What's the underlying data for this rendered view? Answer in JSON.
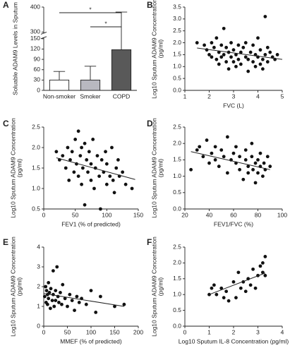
{
  "chart_data": [
    {
      "type": "bar",
      "panel": "A",
      "ylabel": [
        "Soluable ADAM9 Levels in Sputum"
      ],
      "categories": [
        "Non-smoker",
        "Smoker",
        "COPD"
      ],
      "values": [
        30,
        30,
        118
      ],
      "errors": [
        25,
        40,
        262
      ],
      "colors": [
        "#ffffff",
        "#b8b8c0",
        "#595959"
      ],
      "ylim": [
        0,
        400
      ],
      "axis_break": [
        150,
        300
      ],
      "yticks": [
        0,
        30,
        60,
        90,
        120,
        150,
        300,
        400
      ],
      "annotations": [
        "*",
        "*"
      ]
    },
    {
      "type": "scatter",
      "panel": "B",
      "ylabel": [
        "Log10 Sputum ADAM9 Concentration",
        "(pg/ml)"
      ],
      "xlabel": "FVC (L)",
      "x": [
        1.5,
        1.8,
        1.9,
        2.0,
        2.1,
        2.1,
        2.2,
        2.3,
        2.3,
        2.4,
        2.4,
        2.5,
        2.5,
        2.6,
        2.6,
        2.7,
        2.7,
        2.8,
        2.8,
        2.9,
        2.9,
        3.0,
        3.0,
        3.1,
        3.1,
        3.2,
        3.2,
        3.3,
        3.3,
        3.4,
        3.5,
        3.5,
        3.6,
        3.6,
        3.7,
        3.8,
        3.8,
        3.9,
        3.9,
        4.0,
        4.0,
        4.1,
        4.1,
        4.2,
        4.2,
        4.3,
        4.3,
        4.4,
        4.4,
        4.5,
        4.6,
        4.7,
        4.8
      ],
      "values": [
        2.0,
        1.9,
        1.7,
        1.5,
        2.0,
        1.4,
        1.8,
        2.2,
        1.3,
        1.6,
        1.1,
        1.9,
        1.4,
        2.6,
        1.5,
        1.2,
        1.8,
        1.6,
        0.9,
        1.4,
        2.0,
        1.2,
        1.7,
        1.5,
        1.0,
        1.9,
        1.3,
        1.6,
        1.1,
        1.8,
        1.4,
        2.0,
        1.3,
        0.8,
        1.6,
        1.2,
        1.9,
        1.5,
        1.0,
        1.4,
        2.2,
        1.1,
        1.7,
        1.3,
        0.9,
        1.5,
        3.1,
        1.2,
        1.8,
        1.6,
        1.4,
        1.3,
        1.5
      ],
      "trendline": {
        "x": [
          1.5,
          5
        ],
        "values": [
          1.78,
          1.3
        ]
      },
      "xlim": [
        1,
        5
      ],
      "xticks": [
        1,
        2,
        3,
        4,
        5
      ],
      "ylim": [
        0,
        3.5
      ],
      "yticks": [
        {
          "value": 0,
          "label": "0.0"
        },
        0.5,
        {
          "value": 1,
          "label": "1.0"
        },
        1.5,
        {
          "value": 2,
          "label": "2.0"
        },
        2.5,
        {
          "value": 3,
          "label": "3.0"
        },
        3.5
      ]
    },
    {
      "type": "scatter",
      "panel": "C",
      "ylabel": [
        "Log10 Sputum ADAM9 Concentration",
        "(pg/ml)"
      ],
      "xlabel": "FEV1 (% of predicted)",
      "x": [
        20,
        25,
        30,
        35,
        38,
        40,
        42,
        45,
        48,
        50,
        52,
        55,
        55,
        58,
        60,
        60,
        62,
        65,
        65,
        68,
        70,
        72,
        75,
        75,
        78,
        80,
        82,
        85,
        88,
        90,
        92,
        95,
        98,
        100,
        100,
        105,
        108,
        110,
        112,
        115,
        118,
        120,
        125,
        130,
        140
      ],
      "values": [
        1.9,
        1.7,
        1.8,
        1.5,
        2.0,
        1.2,
        1.7,
        1.9,
        1.4,
        2.2,
        1.6,
        2.4,
        1.3,
        1.8,
        2.0,
        1.1,
        1.5,
        2.1,
        0.6,
        1.7,
        1.4,
        1.9,
        1.2,
        1.6,
        2.2,
        1.0,
        1.5,
        1.8,
        1.3,
        0.5,
        1.7,
        1.4,
        1.9,
        1.1,
        1.6,
        1.3,
        2.0,
        1.2,
        0.9,
        1.5,
        1.7,
        1.3,
        1.4,
        1.1,
        1.0
      ],
      "trendline": {
        "x": [
          20,
          145
        ],
        "values": [
          1.75,
          1.22
        ]
      },
      "xlim": [
        0,
        150
      ],
      "xticks": [
        0,
        50,
        100,
        150
      ],
      "ylim": [
        0.5,
        2.5
      ],
      "yticks": [
        0.5,
        {
          "value": 1,
          "label": "1.0"
        },
        1.5,
        {
          "value": 2,
          "label": "2.0"
        },
        2.5
      ]
    },
    {
      "type": "scatter",
      "panel": "D",
      "ylabel": [
        "Log10 Sputum ADAM9 Concentration",
        "(pg/ml)"
      ],
      "xlabel": "FEV1/FVC (%)",
      "x": [
        25,
        30,
        32,
        35,
        38,
        40,
        42,
        45,
        45,
        48,
        50,
        52,
        55,
        55,
        58,
        60,
        62,
        62,
        65,
        65,
        68,
        70,
        70,
        72,
        72,
        75,
        75,
        76,
        78,
        78,
        80,
        80,
        82,
        82,
        84,
        85,
        86,
        88,
        90
      ],
      "values": [
        1.2,
        1.8,
        1.9,
        1.6,
        2.1,
        1.4,
        1.7,
        1.5,
        1.9,
        1.3,
        1.8,
        1.6,
        2.2,
        1.1,
        1.5,
        1.7,
        1.4,
        1.9,
        1.2,
        1.6,
        0.9,
        1.5,
        1.8,
        1.3,
        1.1,
        1.6,
        2.0,
        1.2,
        1.4,
        0.8,
        1.5,
        1.1,
        1.3,
        1.7,
        1.0,
        1.4,
        1.2,
        1.6,
        1.3
      ],
      "trendline": {
        "x": [
          25,
          90
        ],
        "values": [
          1.75,
          1.2
        ]
      },
      "xlim": [
        20,
        100
      ],
      "xticks": [
        20,
        40,
        60,
        80,
        100
      ],
      "ylim": [
        0,
        2.5
      ],
      "yticks": [
        {
          "value": 0,
          "label": "0.0"
        },
        0.5,
        {
          "value": 1,
          "label": "1.0"
        },
        1.5,
        {
          "value": 2,
          "label": "2.0"
        },
        2.5
      ]
    },
    {
      "type": "scatter",
      "panel": "E",
      "ylabel": [
        "Log10 Sputum ADAM9 Concentration",
        "(pg/ml)"
      ],
      "xlabel": "MMEF (% of predicted)",
      "x": [
        2,
        4,
        5,
        6,
        8,
        8,
        10,
        10,
        12,
        14,
        15,
        18,
        20,
        20,
        22,
        25,
        25,
        28,
        30,
        32,
        35,
        38,
        40,
        45,
        50,
        55,
        60,
        65,
        70,
        75,
        80,
        90,
        100,
        110,
        120,
        150,
        170
      ],
      "values": [
        1.5,
        2.0,
        1.2,
        1.8,
        1.6,
        1.1,
        2.2,
        1.4,
        1.7,
        0.9,
        1.9,
        1.3,
        2.8,
        1.6,
        1.0,
        1.8,
        1.3,
        3.0,
        1.5,
        1.2,
        1.7,
        1.1,
        2.1,
        1.4,
        1.0,
        1.6,
        1.3,
        0.8,
        1.5,
        1.2,
        1.4,
        1.1,
        1.8,
        0.7,
        1.5,
        1.0,
        1.1
      ],
      "trendline": {
        "x": [
          0,
          170
        ],
        "values": [
          1.65,
          1.0
        ]
      },
      "xlim": [
        0,
        200
      ],
      "xticks": [
        0,
        50,
        100,
        150,
        200
      ],
      "ylim": [
        0,
        4
      ],
      "yticks": [
        0,
        1,
        2,
        3,
        4
      ]
    },
    {
      "type": "scatter",
      "panel": "F",
      "ylabel": [
        "Log10 Sputum ADAM9 Concentration",
        "(pg/ml)"
      ],
      "xlabel": "Log10 Sputum IL-8 Concentration (pg/ml)",
      "x": [
        1.0,
        1.1,
        1.2,
        1.3,
        1.5,
        1.6,
        1.7,
        1.8,
        2.0,
        2.1,
        2.2,
        2.3,
        2.4,
        2.5,
        2.6,
        2.7,
        2.8,
        2.9,
        3.0,
        3.1,
        3.2,
        3.2,
        3.3,
        3.3
      ],
      "values": [
        1.0,
        1.2,
        1.3,
        1.0,
        1.2,
        0.9,
        1.1,
        0.8,
        1.4,
        0.9,
        1.7,
        1.2,
        1.4,
        1.1,
        1.5,
        1.3,
        1.8,
        1.2,
        1.6,
        1.9,
        1.7,
        2.0,
        2.2,
        1.6
      ],
      "trendline": {
        "x": [
          1,
          3.3
        ],
        "values": [
          1.0,
          1.68
        ]
      },
      "xlim": [
        0,
        4
      ],
      "xticks": [
        0,
        1,
        2,
        3,
        4
      ],
      "ylim": [
        0,
        2.5
      ],
      "yticks": [
        {
          "value": 0,
          "label": "0.0"
        },
        0.5,
        {
          "value": 1,
          "label": "1.0"
        },
        1.5,
        {
          "value": 2,
          "label": "2.0"
        },
        2.5
      ]
    }
  ]
}
